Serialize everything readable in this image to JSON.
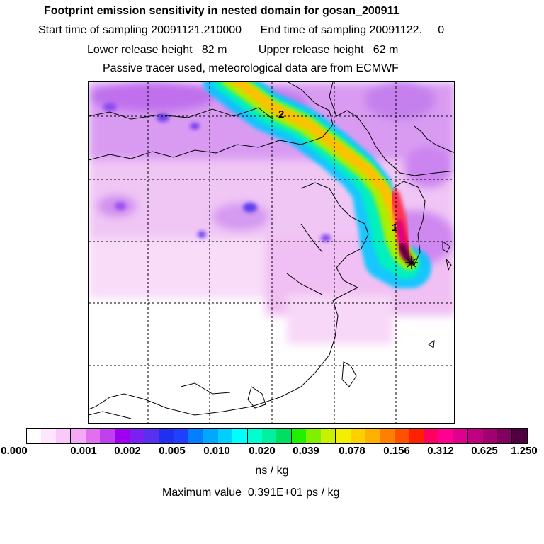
{
  "header": {
    "title": "Footprint emission sensitivity in nested domain for gosan_200911",
    "line2": "Start time of sampling 20091121.210000      End time of sampling 20091122.     0",
    "line3": "Lower release height   82 m          Upper release height   62 m",
    "line4": "Passive tracer used, meteorological data are from ECMWF"
  },
  "map": {
    "labels": [
      {
        "text": "2",
        "name": "trajectory-marker-2"
      },
      {
        "text": "1",
        "name": "trajectory-marker-1"
      }
    ],
    "release_site_symbol": "star-icon"
  },
  "colorbar": {
    "colors": [
      "#ffffff",
      "#ffe6ff",
      "#fbc8fb",
      "#f5a8f5",
      "#e070f0",
      "#c040f0",
      "#a000f0",
      "#7a20f0",
      "#5a30f0",
      "#2030f0",
      "#2040ff",
      "#0080ff",
      "#00a8ff",
      "#00d0ff",
      "#00ffff",
      "#00ffd0",
      "#00f0a0",
      "#00e060",
      "#20f000",
      "#80f000",
      "#c8f000",
      "#f0f000",
      "#ffd000",
      "#ffb000",
      "#ff8000",
      "#ff5000",
      "#ff2000",
      "#ff0060",
      "#ff0090",
      "#e00090",
      "#c00080",
      "#a00070",
      "#800060",
      "#500040"
    ],
    "ticks": [
      "0.000",
      "0.001",
      "0.002",
      "0.005",
      "0.010",
      "0.020",
      "0.039",
      "0.078",
      "0.156",
      "0.312",
      "0.625",
      "1.250"
    ]
  },
  "unit": "ns / kg",
  "max_value": "Maximum value  0.391E+01 ps / kg"
}
